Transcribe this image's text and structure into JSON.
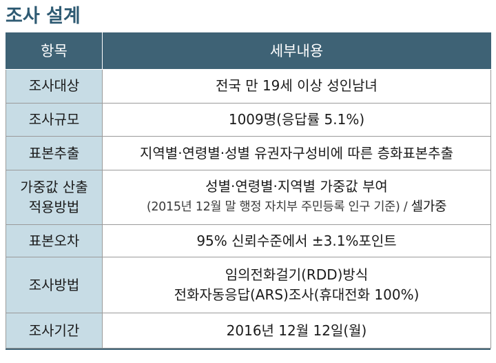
{
  "title": "조사 설계",
  "table": {
    "headers": [
      "항목",
      "세부내용"
    ],
    "rows": [
      {
        "label": [
          "조사대상"
        ],
        "content": [
          "전국 만 19세 이상 성인남녀"
        ]
      },
      {
        "label": [
          "조사규모"
        ],
        "content": [
          "1009명(응답률 5.1%)"
        ]
      },
      {
        "label": [
          "표본추출"
        ],
        "content": [
          "지역별·연령별·성별 유권자구성비에 따른 층화표본추출"
        ]
      },
      {
        "label": [
          "가중값 산출",
          "적용방법"
        ],
        "content": [
          "성별·연령별·지역별 가중값 부여"
        ],
        "note": "(2015년 12월 말 행정 자치부 주민등록 인구 기준) / ",
        "note_emphasis": "셀가중"
      },
      {
        "label": [
          "표본오차"
        ],
        "content": [
          "95% 신뢰수준에서 ±3.1%포인트"
        ]
      },
      {
        "label": [
          "조사방법"
        ],
        "content": [
          "임의전화걸기(RDD)방식",
          "전화자동응답(ARS)조사(휴대전화 100%)"
        ]
      },
      {
        "label": [
          "조사기간"
        ],
        "content": [
          "2016년 12월 12일(월)"
        ]
      }
    ]
  },
  "colors": {
    "title": "#2f5b73",
    "header_bg": "#3e6275",
    "label_bg": "#c7dce5",
    "border": "#9a9a9a"
  }
}
